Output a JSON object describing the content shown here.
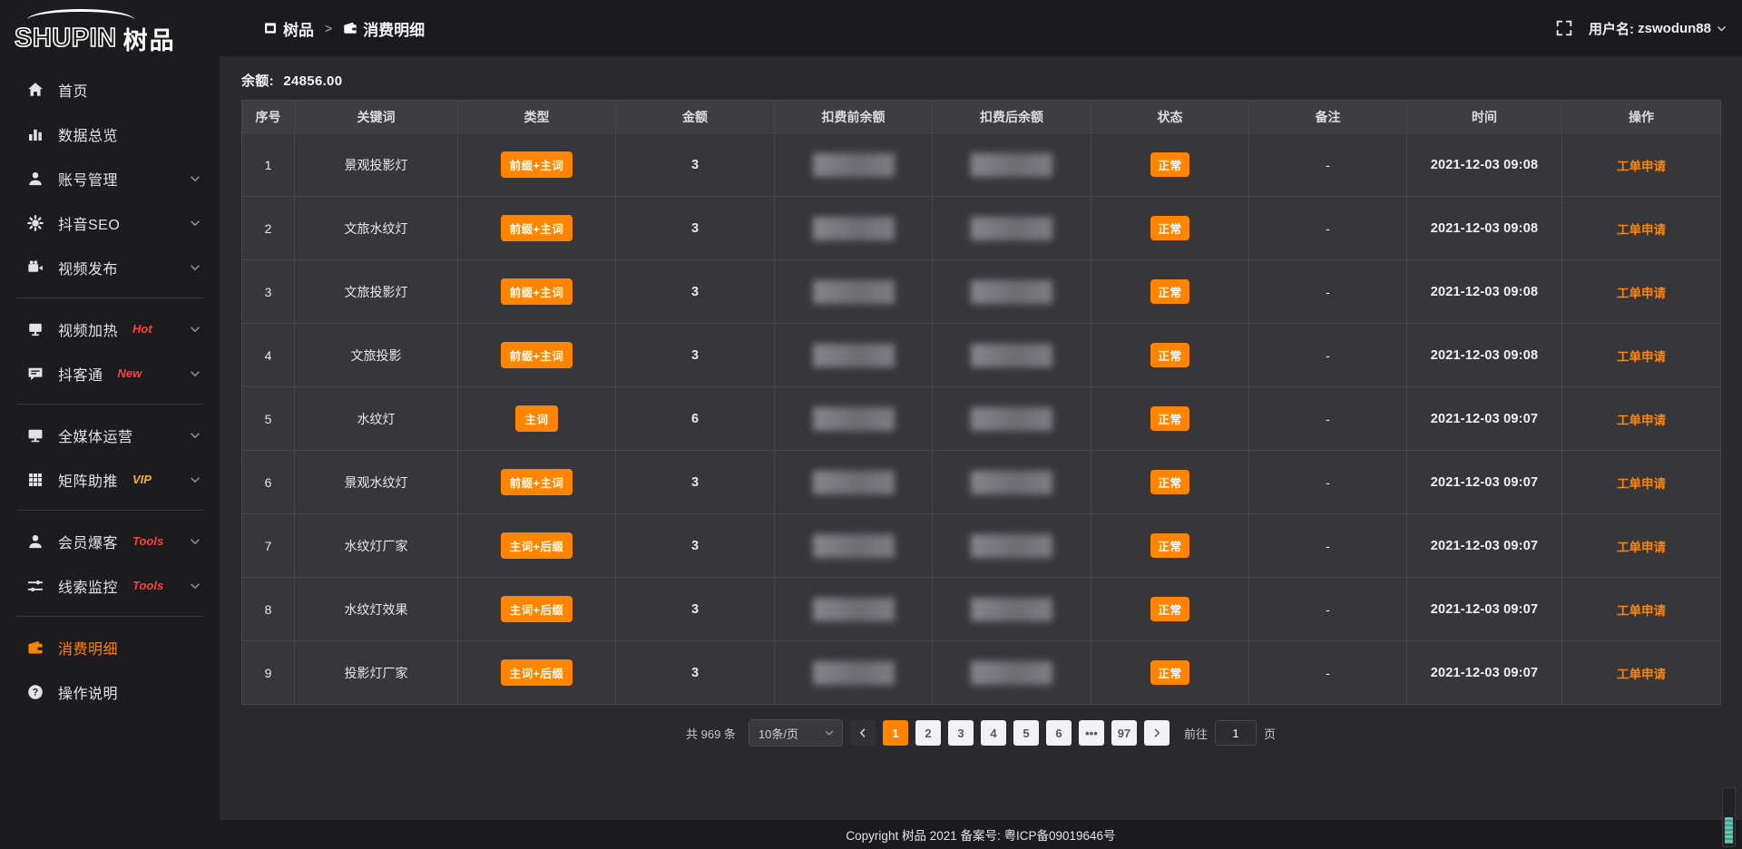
{
  "colors": {
    "accent_orange": "#ff8400",
    "badge_red": "#f5433f",
    "badge_gold": "#e8b339",
    "sidebar_bg": "#1c1c1f",
    "content_bg": "#2a2a2e",
    "teal_scroll": "#4fae9c"
  },
  "sidebar": {
    "logo": {
      "brand": "SHUPIN",
      "brand_cn": "树品"
    },
    "items": [
      {
        "label": "首页",
        "icon": "home-icon"
      },
      {
        "label": "数据总览",
        "icon": "chart-icon"
      },
      {
        "label": "账号管理",
        "icon": "user-icon",
        "chevron": true
      },
      {
        "label": "抖音SEO",
        "icon": "gear-icon",
        "chevron": true
      },
      {
        "label": "视频发布",
        "icon": "video-icon",
        "chevron": true
      },
      {
        "divider": true
      },
      {
        "label": "视频加热",
        "icon": "screen-icon",
        "badge": "Hot",
        "badge_color": "red",
        "chevron": true
      },
      {
        "label": "抖客通",
        "icon": "chat-icon",
        "badge": "New",
        "badge_color": "red",
        "chevron": true
      },
      {
        "divider": true
      },
      {
        "label": "全媒体运营",
        "icon": "monitor-icon",
        "chevron": true
      },
      {
        "label": "矩阵助推",
        "icon": "grid-icon",
        "badge": "VIP",
        "badge_color": "gold",
        "chevron": true
      },
      {
        "divider": true
      },
      {
        "label": "会员爆客",
        "icon": "member-icon",
        "badge": "Tools",
        "badge_color": "red",
        "chevron": true
      },
      {
        "label": "线索监控",
        "icon": "sliders-icon",
        "badge": "Tools",
        "badge_color": "red",
        "chevron": true
      },
      {
        "divider": true
      },
      {
        "label": "消费明细",
        "icon": "wallet-icon",
        "active": true
      },
      {
        "label": "操作说明",
        "icon": "question-icon"
      }
    ]
  },
  "topbar": {
    "breadcrumb": {
      "root": "树品",
      "current": "消费明细"
    },
    "username_label": "用户名:",
    "username": "zswodun88"
  },
  "main": {
    "balance_label": "余额:",
    "balance_value": "24856.00",
    "table": {
      "columns": [
        "序号",
        "关键词",
        "类型",
        "金额",
        "扣费前余额",
        "扣费后余额",
        "状态",
        "备注",
        "时间",
        "操作"
      ],
      "rows": [
        {
          "index": "1",
          "keyword": "景观投影灯",
          "type": "前缀+主词",
          "amount": "3",
          "status": "正常",
          "remark": "-",
          "time": "2021-12-03 09:08",
          "action": "工单申请"
        },
        {
          "index": "2",
          "keyword": "文旅水纹灯",
          "type": "前缀+主词",
          "amount": "3",
          "status": "正常",
          "remark": "-",
          "time": "2021-12-03 09:08",
          "action": "工单申请"
        },
        {
          "index": "3",
          "keyword": "文旅投影灯",
          "type": "前缀+主词",
          "amount": "3",
          "status": "正常",
          "remark": "-",
          "time": "2021-12-03 09:08",
          "action": "工单申请"
        },
        {
          "index": "4",
          "keyword": "文旅投影",
          "type": "前缀+主词",
          "amount": "3",
          "status": "正常",
          "remark": "-",
          "time": "2021-12-03 09:08",
          "action": "工单申请"
        },
        {
          "index": "5",
          "keyword": "水纹灯",
          "type": "主词",
          "amount": "6",
          "status": "正常",
          "remark": "-",
          "time": "2021-12-03 09:07",
          "action": "工单申请"
        },
        {
          "index": "6",
          "keyword": "景观水纹灯",
          "type": "前缀+主词",
          "amount": "3",
          "status": "正常",
          "remark": "-",
          "time": "2021-12-03 09:07",
          "action": "工单申请"
        },
        {
          "index": "7",
          "keyword": "水纹灯厂家",
          "type": "主词+后缀",
          "amount": "3",
          "status": "正常",
          "remark": "-",
          "time": "2021-12-03 09:07",
          "action": "工单申请"
        },
        {
          "index": "8",
          "keyword": "水纹灯效果",
          "type": "主词+后缀",
          "amount": "3",
          "status": "正常",
          "remark": "-",
          "time": "2021-12-03 09:07",
          "action": "工单申请"
        },
        {
          "index": "9",
          "keyword": "投影灯厂家",
          "type": "主词+后缀",
          "amount": "3",
          "status": "正常",
          "remark": "-",
          "time": "2021-12-03 09:07",
          "action": "工单申请"
        }
      ]
    },
    "pagination": {
      "total_label": "共 969 条",
      "page_size": "10条/页",
      "pages": [
        "1",
        "2",
        "3",
        "4",
        "5",
        "6",
        "•••",
        "97"
      ],
      "active_page": "1",
      "goto_label": "前往",
      "goto_value": "1",
      "goto_suffix": "页"
    }
  },
  "footer": {
    "copyright": "Copyright 树品 2021 备案号: 粤ICP备09019646号"
  }
}
